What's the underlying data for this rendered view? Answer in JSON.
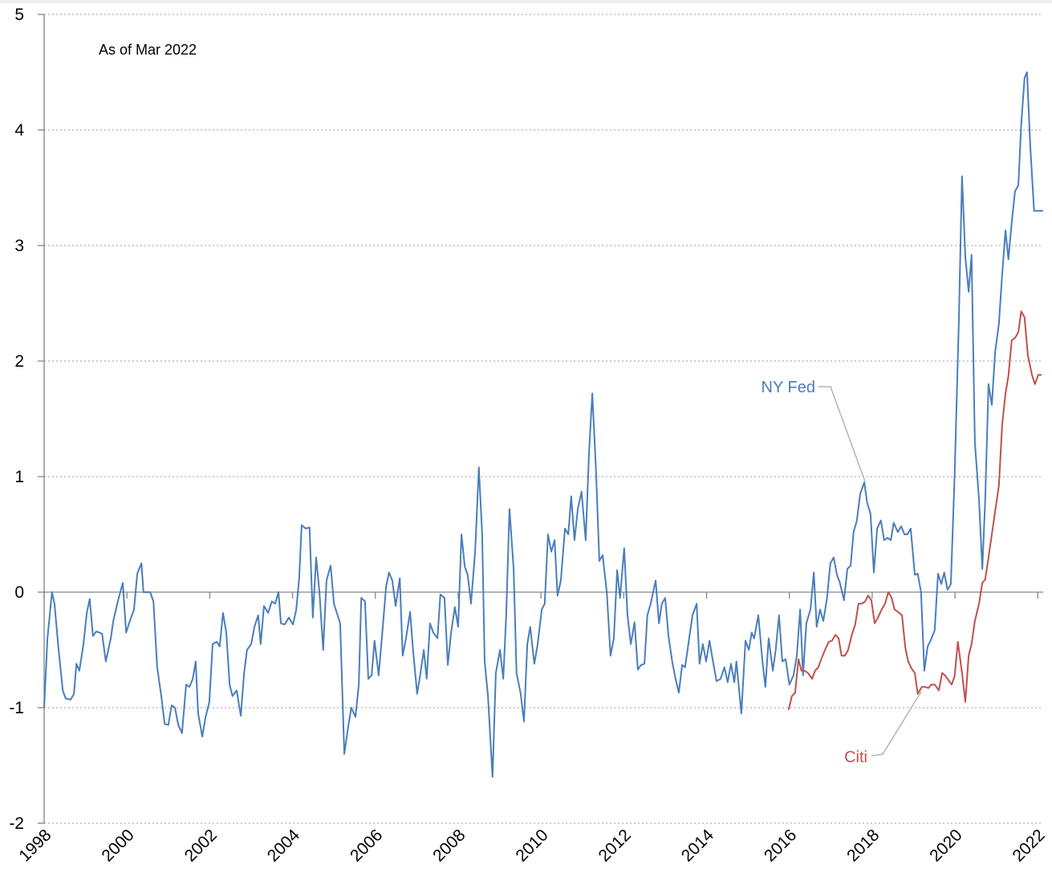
{
  "chart_data": {
    "type": "line",
    "annotations": [
      "As of Mar 2022",
      "NY Fed",
      "Citi"
    ],
    "xlim": [
      1998,
      2022.13
    ],
    "ylim": [
      -2,
      5
    ],
    "xticks": [
      1998,
      2000,
      2002,
      2004,
      2006,
      2008,
      2010,
      2012,
      2014,
      2016,
      2018,
      2020,
      2022
    ],
    "yticks": [
      -2,
      -1,
      0,
      1,
      2,
      3,
      4,
      5
    ],
    "grid": true,
    "series": [
      {
        "name": "NY Fed",
        "color": "#4a7ebb",
        "x": [
          1998.0,
          1998.08,
          1998.19,
          1998.25,
          1998.35,
          1998.45,
          1998.52,
          1998.64,
          1998.72,
          1998.78,
          1998.85,
          1998.95,
          1999.03,
          1999.1,
          1999.18,
          1999.26,
          1999.4,
          1999.49,
          1999.61,
          1999.67,
          1999.78,
          1999.9,
          1999.98,
          2000.07,
          2000.17,
          2000.25,
          2000.35,
          2000.4,
          2000.56,
          2000.64,
          2000.73,
          2000.83,
          2000.91,
          2001.0,
          2001.08,
          2001.16,
          2001.24,
          2001.33,
          2001.43,
          2001.51,
          2001.59,
          2001.66,
          2001.72,
          2001.82,
          2001.9,
          2001.99,
          2002.07,
          2002.17,
          2002.24,
          2002.32,
          2002.4,
          2002.48,
          2002.55,
          2002.65,
          2002.75,
          2002.83,
          2002.9,
          2003.0,
          2003.08,
          2003.17,
          2003.23,
          2003.31,
          2003.41,
          2003.5,
          2003.58,
          2003.66,
          2003.72,
          2003.81,
          2003.91,
          2004.01,
          2004.09,
          2004.16,
          2004.22,
          2004.32,
          2004.41,
          2004.49,
          2004.57,
          2004.65,
          2004.74,
          2004.82,
          2004.92,
          2005.0,
          2005.07,
          2005.15,
          2005.25,
          2005.35,
          2005.42,
          2005.52,
          2005.6,
          2005.66,
          2005.75,
          2005.83,
          2005.91,
          2005.98,
          2006.08,
          2006.18,
          2006.26,
          2006.33,
          2006.41,
          2006.49,
          2006.59,
          2006.66,
          2006.74,
          2006.84,
          2006.91,
          2007.01,
          2007.09,
          2007.17,
          2007.24,
          2007.32,
          2007.4,
          2007.5,
          2007.57,
          2007.67,
          2007.75,
          2007.83,
          2007.92,
          2008.0,
          2008.08,
          2008.16,
          2008.23,
          2008.31,
          2008.41,
          2008.5,
          2008.58,
          2008.64,
          2008.72,
          2008.83,
          2008.91,
          2009.01,
          2009.09,
          2009.16,
          2009.24,
          2009.34,
          2009.41,
          2009.51,
          2009.59,
          2009.67,
          2009.74,
          2009.84,
          2009.92,
          2010.02,
          2010.09,
          2010.17,
          2010.25,
          2010.33,
          2010.4,
          2010.48,
          2010.58,
          2010.66,
          2010.73,
          2010.81,
          2010.89,
          2010.98,
          2011.08,
          2011.16,
          2011.24,
          2011.33,
          2011.41,
          2011.49,
          2011.59,
          2011.68,
          2011.76,
          2011.84,
          2011.91,
          2012.01,
          2012.09,
          2012.17,
          2012.26,
          2012.34,
          2012.42,
          2012.5,
          2012.57,
          2012.65,
          2012.77,
          2012.85,
          2012.92,
          2013.0,
          2013.08,
          2013.17,
          2013.25,
          2013.33,
          2013.41,
          2013.48,
          2013.56,
          2013.66,
          2013.76,
          2013.83,
          2013.91,
          2013.99,
          2014.07,
          2014.14,
          2014.24,
          2014.34,
          2014.43,
          2014.51,
          2014.59,
          2014.67,
          2014.72,
          2014.84,
          2014.94,
          2015.02,
          2015.09,
          2015.15,
          2015.25,
          2015.35,
          2015.42,
          2015.5,
          2015.6,
          2015.67,
          2015.75,
          2015.83,
          2015.91,
          2016.0,
          2016.1,
          2016.18,
          2016.26,
          2016.33,
          2016.41,
          2016.51,
          2016.59,
          2016.66,
          2016.74,
          2016.82,
          2016.91,
          2016.99,
          2017.07,
          2017.15,
          2017.22,
          2017.32,
          2017.4,
          2017.48,
          2017.55,
          2017.63,
          2017.71,
          2017.81,
          2017.88,
          2017.96,
          2018.04,
          2018.12,
          2018.21,
          2018.29,
          2018.37,
          2018.45,
          2018.52,
          2018.62,
          2018.7,
          2018.78,
          2018.85,
          2018.93,
          2019.03,
          2019.1,
          2019.18,
          2019.26,
          2019.34,
          2019.41,
          2019.51,
          2019.59,
          2019.67,
          2019.74,
          2019.82,
          2019.9,
          2019.99,
          2020.09,
          2020.17,
          2020.25,
          2020.33,
          2020.4,
          2020.48,
          2020.58,
          2020.66,
          2020.73,
          2020.81,
          2020.89,
          2020.97,
          2021.06,
          2021.14,
          2021.22,
          2021.29,
          2021.37,
          2021.45,
          2021.53,
          2021.6,
          2021.68,
          2021.74,
          2021.82,
          2021.91,
          2022.13
        ],
        "values": [
          -1.0,
          -0.4,
          0.0,
          -0.1,
          -0.5,
          -0.85,
          -0.92,
          -0.93,
          -0.88,
          -0.62,
          -0.68,
          -0.45,
          -0.18,
          -0.06,
          -0.38,
          -0.34,
          -0.36,
          -0.6,
          -0.4,
          -0.25,
          -0.08,
          0.08,
          -0.35,
          -0.25,
          -0.15,
          0.16,
          0.25,
          0.0,
          0.0,
          -0.08,
          -0.65,
          -0.9,
          -1.14,
          -1.15,
          -0.98,
          -1.0,
          -1.15,
          -1.22,
          -0.8,
          -0.82,
          -0.75,
          -0.6,
          -1.05,
          -1.25,
          -1.08,
          -0.95,
          -0.45,
          -0.43,
          -0.47,
          -0.18,
          -0.35,
          -0.8,
          -0.9,
          -0.85,
          -1.07,
          -0.7,
          -0.5,
          -0.45,
          -0.3,
          -0.2,
          -0.45,
          -0.12,
          -0.18,
          -0.08,
          -0.1,
          0.0,
          -0.27,
          -0.28,
          -0.22,
          -0.28,
          -0.15,
          0.12,
          0.58,
          0.55,
          0.56,
          -0.22,
          0.3,
          0.0,
          -0.5,
          0.1,
          0.23,
          -0.1,
          -0.18,
          -0.27,
          -1.4,
          -1.15,
          -1.0,
          -1.08,
          -0.8,
          -0.05,
          -0.08,
          -0.75,
          -0.72,
          -0.42,
          -0.72,
          -0.3,
          0.05,
          0.17,
          0.1,
          -0.12,
          0.12,
          -0.55,
          -0.4,
          -0.17,
          -0.5,
          -0.88,
          -0.7,
          -0.5,
          -0.75,
          -0.27,
          -0.35,
          -0.4,
          -0.02,
          -0.05,
          -0.63,
          -0.35,
          -0.13,
          -0.3,
          0.5,
          0.22,
          0.15,
          -0.1,
          0.35,
          1.08,
          0.5,
          -0.6,
          -0.9,
          -1.6,
          -0.7,
          -0.5,
          -0.75,
          -0.2,
          0.72,
          0.2,
          -0.7,
          -0.88,
          -1.12,
          -0.45,
          -0.3,
          -0.62,
          -0.45,
          -0.15,
          -0.1,
          0.5,
          0.35,
          0.45,
          -0.03,
          0.1,
          0.55,
          0.5,
          0.83,
          0.45,
          0.72,
          0.87,
          0.45,
          1.2,
          1.72,
          1.05,
          0.27,
          0.32,
          0.0,
          -0.55,
          -0.4,
          0.19,
          -0.05,
          0.38,
          -0.2,
          -0.45,
          -0.26,
          -0.67,
          -0.63,
          -0.62,
          -0.2,
          -0.1,
          0.1,
          -0.27,
          -0.1,
          -0.05,
          -0.38,
          -0.6,
          -0.75,
          -0.87,
          -0.63,
          -0.65,
          -0.45,
          -0.2,
          -0.1,
          -0.62,
          -0.45,
          -0.6,
          -0.42,
          -0.57,
          -0.77,
          -0.75,
          -0.65,
          -0.78,
          -0.62,
          -0.78,
          -0.6,
          -1.05,
          -0.42,
          -0.5,
          -0.35,
          -0.4,
          -0.2,
          -0.6,
          -0.82,
          -0.4,
          -0.68,
          -0.5,
          -0.2,
          -0.6,
          -0.58,
          -0.8,
          -0.72,
          -0.55,
          -0.15,
          -0.72,
          -0.27,
          -0.15,
          0.17,
          -0.3,
          -0.15,
          -0.25,
          -0.05,
          0.25,
          0.3,
          0.15,
          0.08,
          -0.07,
          0.2,
          0.23,
          0.52,
          0.62,
          0.85,
          0.95,
          0.77,
          0.68,
          0.17,
          0.55,
          0.62,
          0.45,
          0.47,
          0.45,
          0.6,
          0.52,
          0.57,
          0.5,
          0.5,
          0.55,
          0.15,
          0.16,
          0.0,
          -0.68,
          -0.47,
          -0.42,
          -0.33,
          0.16,
          0.07,
          0.17,
          0.02,
          0.07,
          1.0,
          2.3,
          3.6,
          2.9,
          2.6,
          2.92,
          1.3,
          0.8,
          0.2,
          0.8,
          1.8,
          1.62,
          2.08,
          2.32,
          2.75,
          3.13,
          2.88,
          3.2,
          3.47,
          3.52,
          4.05,
          4.45,
          4.5,
          3.85,
          3.3,
          3.3
        ]
      },
      {
        "name": "Citi",
        "color": "#c0504d",
        "x": [
          2015.98,
          2016.06,
          2016.14,
          2016.22,
          2016.29,
          2016.37,
          2016.45,
          2016.55,
          2016.62,
          2016.7,
          2016.78,
          2016.86,
          2016.95,
          2017.03,
          2017.11,
          2017.19,
          2017.26,
          2017.34,
          2017.42,
          2017.5,
          2017.59,
          2017.67,
          2017.75,
          2017.83,
          2017.9,
          2017.98,
          2018.06,
          2018.14,
          2018.23,
          2018.31,
          2018.39,
          2018.47,
          2018.54,
          2018.62,
          2018.72,
          2018.8,
          2018.87,
          2018.95,
          2019.03,
          2019.1,
          2019.2,
          2019.28,
          2019.36,
          2019.43,
          2019.51,
          2019.61,
          2019.69,
          2019.76,
          2019.84,
          2019.92,
          2019.99,
          2020.07,
          2020.17,
          2020.25,
          2020.33,
          2020.4,
          2020.48,
          2020.58,
          2020.66,
          2020.73,
          2020.81,
          2020.89,
          2020.97,
          2021.06,
          2021.14,
          2021.22,
          2021.29,
          2021.37,
          2021.45,
          2021.53,
          2021.6,
          2021.68,
          2021.76,
          2021.86,
          2021.93,
          2022.01,
          2022.09
        ],
        "values": [
          -1.02,
          -0.9,
          -0.87,
          -0.58,
          -0.68,
          -0.68,
          -0.7,
          -0.75,
          -0.68,
          -0.65,
          -0.57,
          -0.5,
          -0.43,
          -0.42,
          -0.37,
          -0.4,
          -0.55,
          -0.55,
          -0.5,
          -0.38,
          -0.28,
          -0.1,
          -0.1,
          -0.08,
          -0.03,
          -0.07,
          -0.27,
          -0.22,
          -0.15,
          -0.1,
          0.0,
          -0.05,
          -0.15,
          -0.17,
          -0.2,
          -0.48,
          -0.6,
          -0.66,
          -0.7,
          -0.88,
          -0.82,
          -0.82,
          -0.83,
          -0.8,
          -0.8,
          -0.85,
          -0.7,
          -0.72,
          -0.76,
          -0.8,
          -0.73,
          -0.43,
          -0.7,
          -0.95,
          -0.55,
          -0.45,
          -0.25,
          -0.1,
          0.08,
          0.11,
          0.3,
          0.5,
          0.7,
          0.92,
          1.45,
          1.72,
          1.87,
          2.18,
          2.2,
          2.25,
          2.43,
          2.38,
          2.05,
          1.88,
          1.8,
          1.88,
          1.88
        ]
      }
    ]
  }
}
